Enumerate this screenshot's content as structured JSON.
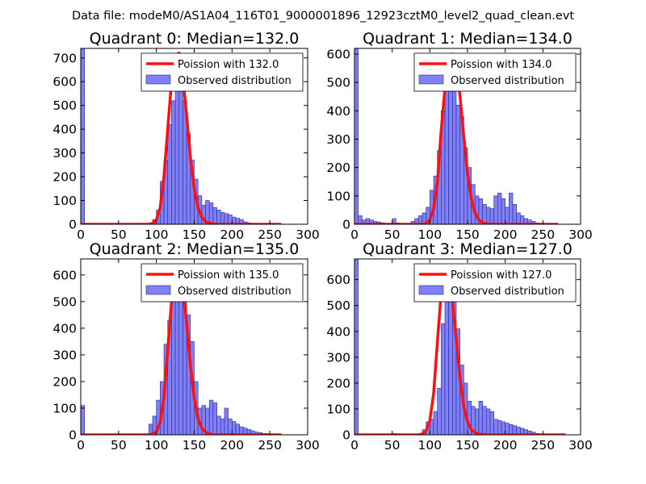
{
  "figure_title": "Data file: modeM0/AS1A04_116T01_9000001896_12923cztM0_level2_quad_clean.evt",
  "colors": {
    "bar_fill": "#7f7ff7",
    "bar_edge": "#2a2a8a",
    "poisson_line": "#ff1010",
    "axis": "#000000"
  },
  "chart_data": [
    {
      "type": "bar",
      "title": "Quadrant 0: Median=132.0",
      "xlim": [
        0,
        300
      ],
      "ylim": [
        0,
        740
      ],
      "xticks": [
        "0",
        "50",
        "100",
        "150",
        "200",
        "250",
        "300"
      ],
      "yticks": [
        "0",
        "100",
        "200",
        "300",
        "400",
        "500",
        "600",
        "700"
      ],
      "legend": {
        "location": "top-right",
        "line_label": "Poission with 132.0",
        "bar_label": "Observed distribution"
      },
      "bin_width": 5,
      "bin_starts": [
        0,
        90,
        95,
        100,
        105,
        110,
        115,
        120,
        125,
        130,
        135,
        140,
        145,
        150,
        155,
        160,
        165,
        170,
        175,
        180,
        185,
        190,
        195,
        200,
        205,
        210,
        215,
        220,
        225,
        230,
        235
      ],
      "values": [
        740,
        5,
        20,
        60,
        180,
        270,
        420,
        520,
        640,
        660,
        520,
        380,
        270,
        190,
        120,
        80,
        100,
        90,
        70,
        60,
        50,
        45,
        40,
        30,
        25,
        20,
        10,
        6,
        4,
        2,
        1
      ],
      "poisson": {
        "mean": 132.0,
        "x": [
          0,
          90,
          95,
          100,
          105,
          110,
          115,
          120,
          125,
          130,
          135,
          140,
          145,
          150,
          155,
          160,
          165,
          170,
          175,
          180,
          200,
          265
        ],
        "y": [
          0,
          0,
          4,
          20,
          70,
          200,
          400,
          600,
          710,
          720,
          620,
          460,
          280,
          150,
          70,
          30,
          12,
          5,
          2,
          0,
          0,
          0
        ]
      }
    },
    {
      "type": "bar",
      "title": "Quadrant 1: Median=134.0",
      "xlim": [
        0,
        300
      ],
      "ylim": [
        0,
        620
      ],
      "xticks": [
        "0",
        "50",
        "100",
        "150",
        "200",
        "250",
        "300"
      ],
      "yticks": [
        "0",
        "100",
        "200",
        "300",
        "400",
        "500",
        "600"
      ],
      "legend": {
        "location": "top-right",
        "line_label": "Poission with 134.0",
        "bar_label": "Observed distribution"
      },
      "bin_width": 5,
      "bin_starts": [
        0,
        5,
        10,
        15,
        20,
        25,
        30,
        35,
        50,
        55,
        75,
        80,
        85,
        90,
        95,
        100,
        105,
        110,
        115,
        120,
        125,
        130,
        135,
        140,
        145,
        150,
        155,
        160,
        165,
        170,
        175,
        180,
        185,
        190,
        195,
        200,
        205,
        210,
        215,
        220,
        225,
        230,
        235,
        240,
        245,
        250
      ],
      "values": [
        620,
        30,
        15,
        20,
        15,
        10,
        8,
        5,
        20,
        5,
        10,
        20,
        30,
        40,
        60,
        120,
        170,
        260,
        400,
        520,
        600,
        560,
        420,
        380,
        270,
        200,
        140,
        100,
        90,
        70,
        60,
        55,
        100,
        110,
        90,
        60,
        110,
        70,
        40,
        30,
        20,
        15,
        10,
        5,
        3,
        2
      ],
      "poisson": {
        "mean": 134.0,
        "x": [
          0,
          90,
          95,
          100,
          105,
          110,
          115,
          120,
          125,
          130,
          135,
          140,
          145,
          150,
          155,
          160,
          165,
          170,
          175,
          180,
          200,
          270
        ],
        "y": [
          0,
          0,
          3,
          15,
          55,
          150,
          330,
          480,
          570,
          600,
          560,
          450,
          310,
          180,
          90,
          40,
          15,
          5,
          2,
          0,
          0,
          0
        ]
      }
    },
    {
      "type": "bar",
      "title": "Quadrant 2: Median=135.0",
      "xlim": [
        0,
        300
      ],
      "ylim": [
        0,
        660
      ],
      "xticks": [
        "0",
        "50",
        "100",
        "150",
        "200",
        "250",
        "300"
      ],
      "yticks": [
        "0",
        "100",
        "200",
        "300",
        "400",
        "500",
        "600"
      ],
      "legend": {
        "location": "top-right",
        "line_label": "Poission with 135.0",
        "bar_label": "Observed distribution"
      },
      "bin_width": 5,
      "bin_starts": [
        0,
        90,
        95,
        100,
        105,
        110,
        115,
        120,
        125,
        130,
        135,
        140,
        145,
        150,
        155,
        160,
        165,
        170,
        175,
        180,
        185,
        190,
        195,
        200,
        205,
        210,
        215,
        220,
        225,
        230,
        235,
        240,
        245,
        250,
        255,
        260
      ],
      "values": [
        110,
        40,
        70,
        130,
        200,
        340,
        430,
        520,
        580,
        600,
        570,
        450,
        350,
        200,
        100,
        110,
        100,
        130,
        120,
        70,
        60,
        100,
        60,
        50,
        40,
        30,
        25,
        20,
        15,
        10,
        8,
        5,
        4,
        3,
        2,
        1
      ],
      "poisson": {
        "mean": 135.0,
        "x": [
          0,
          90,
          95,
          100,
          105,
          110,
          115,
          120,
          125,
          130,
          135,
          140,
          145,
          150,
          155,
          160,
          165,
          170,
          175,
          180,
          200,
          265
        ],
        "y": [
          0,
          0,
          3,
          12,
          45,
          140,
          320,
          500,
          610,
          630,
          560,
          420,
          260,
          140,
          60,
          25,
          10,
          4,
          1,
          0,
          0,
          0
        ]
      }
    },
    {
      "type": "bar",
      "title": "Quadrant 3: Median=127.0",
      "xlim": [
        0,
        300
      ],
      "ylim": [
        0,
        680
      ],
      "xticks": [
        "0",
        "50",
        "100",
        "150",
        "200",
        "250",
        "300"
      ],
      "yticks": [
        "0",
        "100",
        "200",
        "300",
        "400",
        "500",
        "600"
      ],
      "legend": {
        "location": "top-right",
        "line_label": "Poission with 127.0",
        "bar_label": "Observed distribution"
      },
      "bin_width": 5,
      "bin_starts": [
        0,
        50,
        90,
        95,
        100,
        105,
        110,
        115,
        120,
        125,
        130,
        135,
        140,
        145,
        150,
        155,
        160,
        165,
        170,
        175,
        180,
        185,
        190,
        195,
        200,
        205,
        210,
        215,
        220,
        225,
        230,
        235,
        240,
        245,
        250,
        255
      ],
      "values": [
        680,
        5,
        20,
        50,
        60,
        90,
        180,
        430,
        630,
        650,
        520,
        410,
        270,
        200,
        130,
        110,
        100,
        130,
        110,
        100,
        90,
        60,
        55,
        50,
        45,
        40,
        35,
        30,
        25,
        20,
        15,
        10,
        5,
        3,
        2,
        1
      ],
      "poisson": {
        "mean": 127.0,
        "x": [
          0,
          85,
          90,
          95,
          100,
          105,
          110,
          115,
          120,
          125,
          130,
          135,
          140,
          145,
          150,
          155,
          160,
          165,
          170,
          175,
          200,
          280
        ],
        "y": [
          0,
          0,
          3,
          15,
          55,
          160,
          360,
          550,
          650,
          640,
          520,
          370,
          220,
          110,
          50,
          20,
          8,
          3,
          1,
          0,
          0,
          0
        ]
      }
    }
  ]
}
